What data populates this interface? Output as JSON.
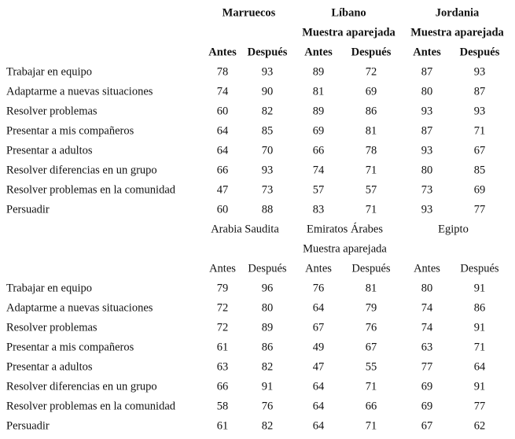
{
  "sections": [
    {
      "bold_headers": true,
      "countries": [
        {
          "name": "Marruecos"
        },
        {
          "name": "Líbano",
          "note": "Muestra aparejada"
        },
        {
          "name": "Jordania",
          "note": "Muestra aparejada"
        }
      ],
      "column_labels": [
        "Antes",
        "Después"
      ],
      "rows": [
        {
          "label": "Trabajar en equipo",
          "values": [
            78,
            93,
            89,
            72,
            87,
            93
          ]
        },
        {
          "label": "Adaptarme a nuevas situaciones",
          "values": [
            74,
            90,
            81,
            69,
            80,
            87
          ]
        },
        {
          "label": "Resolver problemas",
          "values": [
            60,
            82,
            89,
            86,
            93,
            93
          ]
        },
        {
          "label": "Presentar a mis compañeros",
          "values": [
            64,
            85,
            69,
            81,
            87,
            71
          ]
        },
        {
          "label": "Presentar a adultos",
          "values": [
            64,
            70,
            66,
            78,
            93,
            67
          ]
        },
        {
          "label": "Resolver diferencias en un grupo",
          "values": [
            66,
            93,
            74,
            71,
            80,
            85
          ]
        },
        {
          "label": "Resolver problemas en la comunidad",
          "values": [
            47,
            73,
            57,
            57,
            73,
            69
          ]
        },
        {
          "label": "Persuadir",
          "values": [
            60,
            88,
            83,
            71,
            93,
            77
          ]
        }
      ]
    },
    {
      "bold_headers": false,
      "countries": [
        {
          "name": "Arabia Saudita"
        },
        {
          "name": "Emiratos Árabes",
          "note": "Muestra aparejada"
        },
        {
          "name": "Egipto"
        }
      ],
      "column_labels": [
        "Antes",
        "Después"
      ],
      "rows": [
        {
          "label": "Trabajar en equipo",
          "values": [
            79,
            96,
            76,
            81,
            80,
            91
          ]
        },
        {
          "label": "Adaptarme a nuevas situaciones",
          "values": [
            72,
            80,
            64,
            79,
            74,
            86
          ]
        },
        {
          "label": "Resolver problemas",
          "values": [
            72,
            89,
            67,
            76,
            74,
            91
          ]
        },
        {
          "label": "Presentar a mis compañeros",
          "values": [
            61,
            86,
            49,
            67,
            63,
            71
          ]
        },
        {
          "label": "Presentar a adultos",
          "values": [
            63,
            82,
            47,
            55,
            77,
            64
          ]
        },
        {
          "label": "Resolver diferencias en un grupo",
          "values": [
            66,
            91,
            64,
            71,
            69,
            91
          ]
        },
        {
          "label": "Resolver problemas en la comunidad",
          "values": [
            58,
            76,
            64,
            66,
            69,
            77
          ]
        },
        {
          "label": "Persuadir",
          "values": [
            61,
            82,
            64,
            71,
            67,
            62
          ]
        }
      ]
    }
  ]
}
